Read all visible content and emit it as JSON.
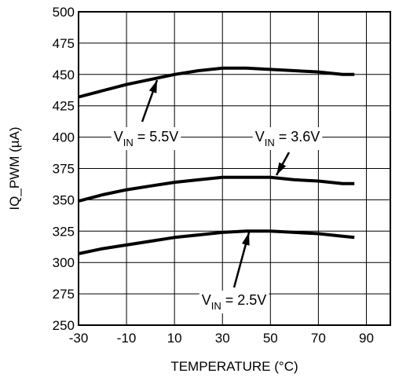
{
  "chart_data": {
    "type": "line",
    "title": "",
    "xlabel": "TEMPERATURE (°C)",
    "ylabel": "IQ_PWM (µA)",
    "xlim": [
      -30,
      100
    ],
    "ylim": [
      250,
      500
    ],
    "x_ticks": [
      -30,
      -10,
      10,
      30,
      50,
      70,
      90
    ],
    "y_ticks": [
      250,
      275,
      300,
      325,
      350,
      375,
      400,
      425,
      450,
      475,
      500
    ],
    "grid": true,
    "series": [
      {
        "name": "VIN = 5.5V",
        "x": [
          -30,
          -20,
          -10,
          0,
          10,
          20,
          30,
          40,
          50,
          60,
          70,
          80,
          85
        ],
        "values": [
          432,
          437,
          442,
          446,
          450,
          453,
          455,
          455,
          454,
          453,
          452,
          450,
          450
        ]
      },
      {
        "name": "VIN = 3.6V",
        "x": [
          -30,
          -20,
          -10,
          0,
          10,
          20,
          30,
          40,
          50,
          60,
          70,
          80,
          85
        ],
        "values": [
          349,
          354,
          358,
          361,
          364,
          366,
          368,
          368,
          368,
          366,
          365,
          363,
          363
        ]
      },
      {
        "name": "VIN = 2.5V",
        "x": [
          -30,
          -20,
          -10,
          0,
          10,
          20,
          30,
          40,
          50,
          60,
          70,
          80,
          85
        ],
        "values": [
          307,
          311,
          314,
          317,
          320,
          322,
          324,
          325,
          325,
          324,
          323,
          321,
          320
        ]
      }
    ],
    "annotations": [
      {
        "prefix": "V",
        "sub": "IN",
        "suffix": " = 5.5V",
        "series": 0
      },
      {
        "prefix": "V",
        "sub": "IN",
        "suffix": " = 3.6V",
        "series": 1
      },
      {
        "prefix": "V",
        "sub": "IN",
        "suffix": " = 2.5V",
        "series": 2
      }
    ]
  }
}
